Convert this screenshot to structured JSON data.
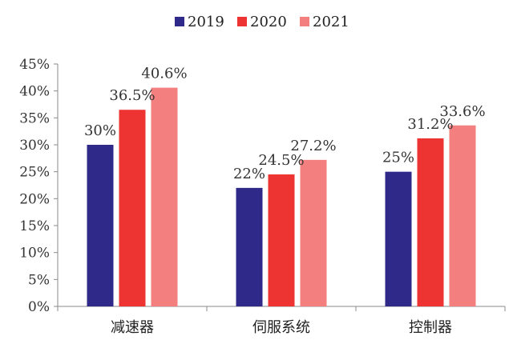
{
  "chart_data": {
    "type": "bar",
    "categories": [
      "减速器",
      "伺服系统",
      "控制器"
    ],
    "series": [
      {
        "name": "2019",
        "values": [
          30,
          22,
          25
        ],
        "labels": [
          "30%",
          "22%",
          "25%"
        ],
        "color": "#2f2a8a"
      },
      {
        "name": "2020",
        "values": [
          36.5,
          24.5,
          31.2
        ],
        "labels": [
          "36.5%",
          "24.5%",
          "31.2%"
        ],
        "color": "#ee3333"
      },
      {
        "name": "2021",
        "values": [
          40.6,
          27.2,
          33.6
        ],
        "labels": [
          "40.6%",
          "27.2%",
          "33.6%"
        ],
        "color": "#f37f7f"
      }
    ],
    "yticks": [
      0,
      5,
      10,
      15,
      20,
      25,
      30,
      35,
      40,
      45
    ],
    "ytick_labels": [
      "0%",
      "5%",
      "10%",
      "15%",
      "20%",
      "25%",
      "30%",
      "35%",
      "40%",
      "45%"
    ],
    "ylim": [
      0,
      45
    ],
    "grid": false,
    "legend_position": "top-center",
    "title": "",
    "xlabel": "",
    "ylabel": ""
  }
}
